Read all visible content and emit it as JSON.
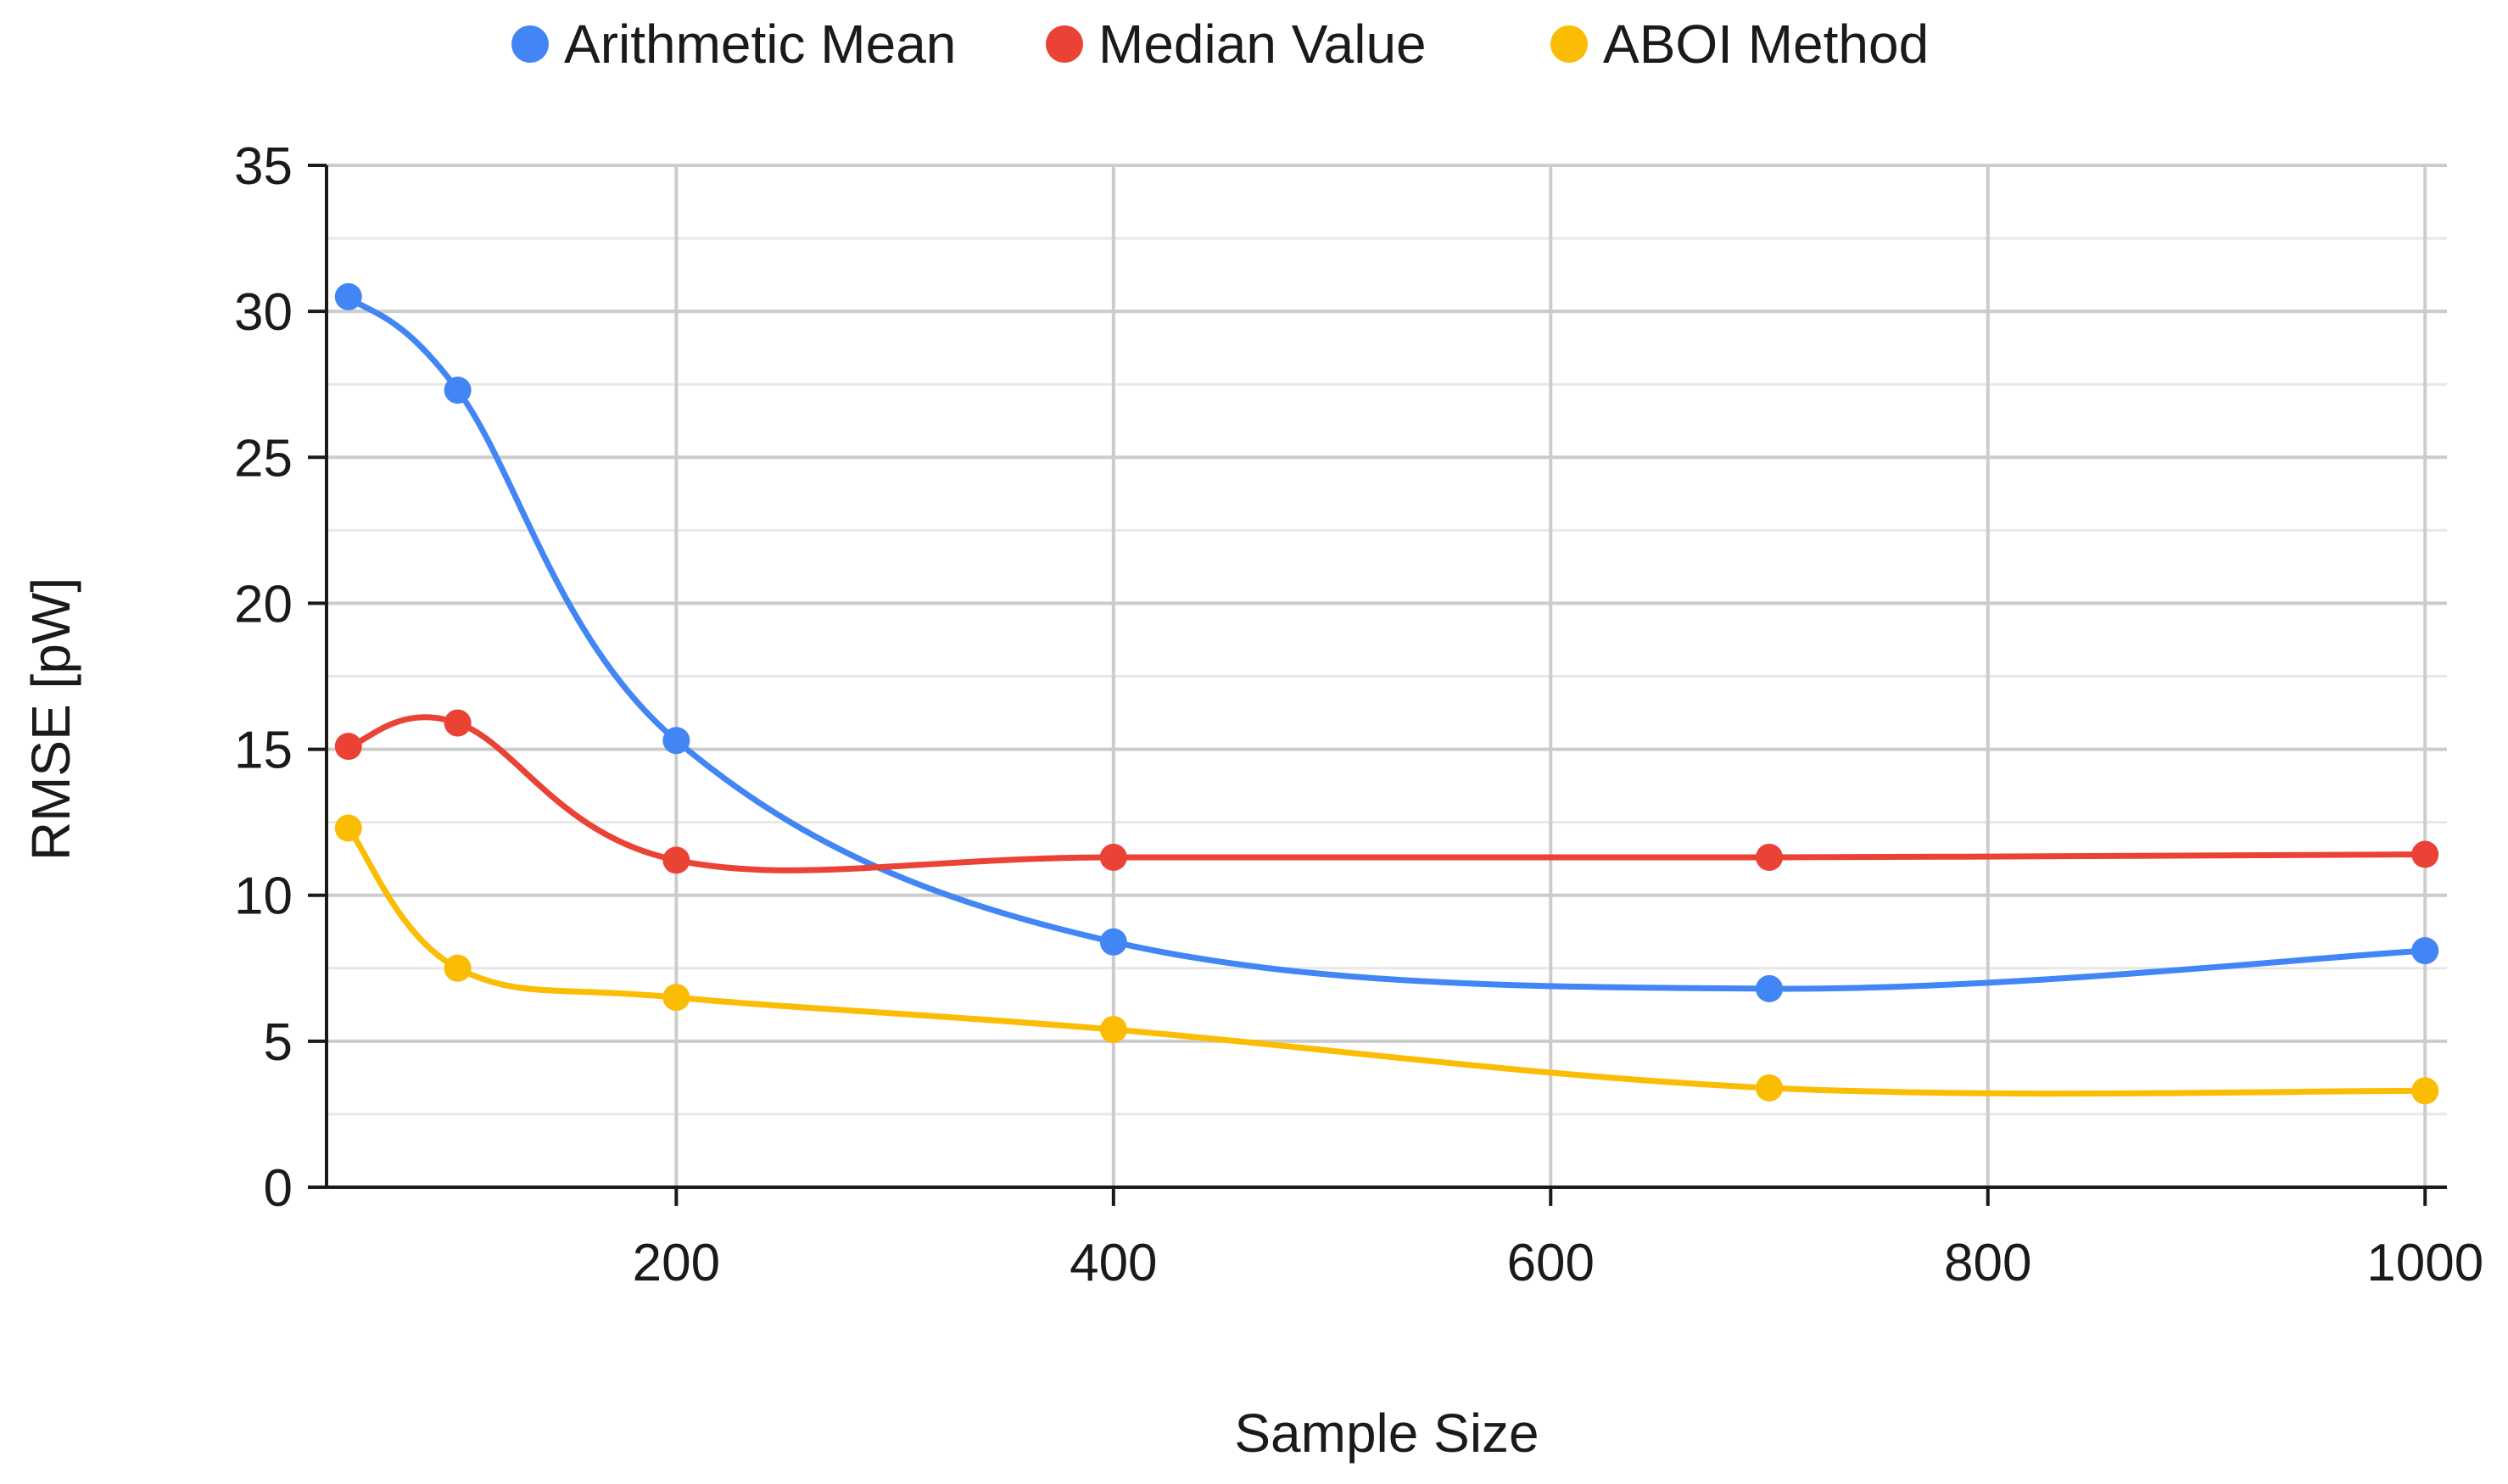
{
  "chart_data": {
    "type": "line",
    "title": "",
    "xlabel": "Sample Size",
    "ylabel": "RMSE [pW]",
    "xlim": [
      40,
      1010
    ],
    "ylim": [
      0,
      35
    ],
    "x_ticks": [
      200,
      400,
      600,
      800,
      1000
    ],
    "y_ticks": [
      0,
      5,
      10,
      15,
      20,
      25,
      30,
      35
    ],
    "y_minor_step": 2.5,
    "grid": true,
    "smooth": true,
    "legend_position": "top",
    "series": [
      {
        "name": "Arithmetic Mean",
        "color": "#4285F4",
        "x": [
          50,
          100,
          200,
          400,
          700,
          1000
        ],
        "y": [
          30.5,
          27.3,
          15.3,
          8.4,
          6.8,
          8.1
        ]
      },
      {
        "name": "Median Value",
        "color": "#EA4335",
        "x": [
          50,
          100,
          200,
          400,
          700,
          1000
        ],
        "y": [
          15.1,
          15.9,
          11.2,
          11.3,
          11.3,
          11.4
        ]
      },
      {
        "name": "ABOI Method",
        "color": "#FBBC04",
        "x": [
          50,
          100,
          200,
          400,
          700,
          1000
        ],
        "y": [
          12.3,
          7.5,
          6.5,
          5.4,
          3.4,
          3.3
        ]
      }
    ]
  }
}
